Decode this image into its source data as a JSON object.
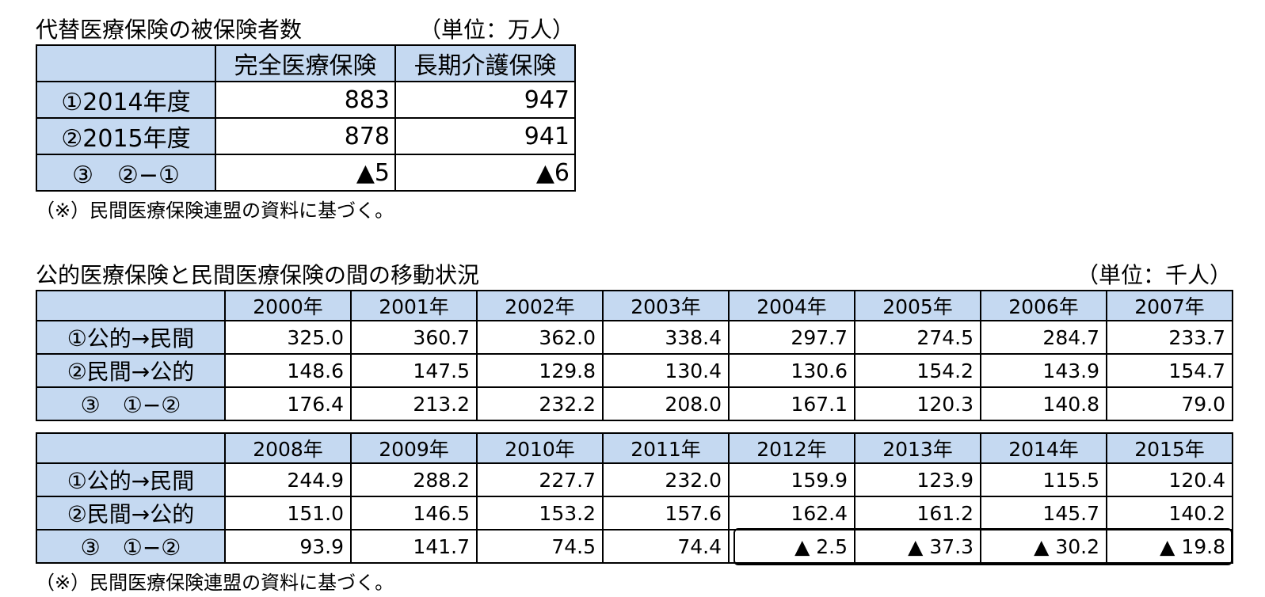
{
  "table1": {
    "title": "代替医療保険の被保険者数",
    "unit": "（単位：万人）",
    "columns": [
      "",
      "完全医療保険",
      "長期介護保険"
    ],
    "rows": [
      {
        "label": "①2014年度",
        "values": [
          "883",
          "947"
        ]
      },
      {
        "label": "②2015年度",
        "values": [
          "878",
          "941"
        ]
      },
      {
        "label": "③　②−①",
        "values": [
          "▲5",
          "▲6"
        ]
      }
    ],
    "note": "（※）民間医療保険連盟の資料に基づく。"
  },
  "table2": {
    "title": "公的医療保険と民間医療保険の間の移動状況",
    "unit": "（単位：千人）",
    "part1": {
      "years": [
        "2000年",
        "2001年",
        "2002年",
        "2003年",
        "2004年",
        "2005年",
        "2006年",
        "2007年"
      ],
      "rows": [
        {
          "label": "①公的→民間",
          "values": [
            "325.0",
            "360.7",
            "362.0",
            "338.4",
            "297.7",
            "274.5",
            "284.7",
            "233.7"
          ]
        },
        {
          "label": "②民間→公的",
          "values": [
            "148.6",
            "147.5",
            "129.8",
            "130.4",
            "130.6",
            "154.2",
            "143.9",
            "154.7"
          ]
        },
        {
          "label": "③　①−②",
          "values": [
            "176.4",
            "213.2",
            "232.2",
            "208.0",
            "167.1",
            "120.3",
            "140.8",
            "79.0"
          ]
        }
      ]
    },
    "part2": {
      "years": [
        "2008年",
        "2009年",
        "2010年",
        "2011年",
        "2012年",
        "2013年",
        "2014年",
        "2015年"
      ],
      "rows": [
        {
          "label": "①公的→民間",
          "values": [
            "244.9",
            "288.2",
            "227.7",
            "232.0",
            "159.9",
            "123.9",
            "115.5",
            "120.4"
          ]
        },
        {
          "label": "②民間→公的",
          "values": [
            "151.0",
            "146.5",
            "153.2",
            "157.6",
            "162.4",
            "161.2",
            "145.7",
            "140.2"
          ]
        },
        {
          "label": "③　①−②",
          "values": [
            "93.9",
            "141.7",
            "74.5",
            "74.4",
            "▲ 2.5",
            "▲ 37.3",
            "▲ 30.2",
            "▲ 19.8"
          ]
        }
      ]
    },
    "note": "（※）民間医療保険連盟の資料に基づく。"
  }
}
